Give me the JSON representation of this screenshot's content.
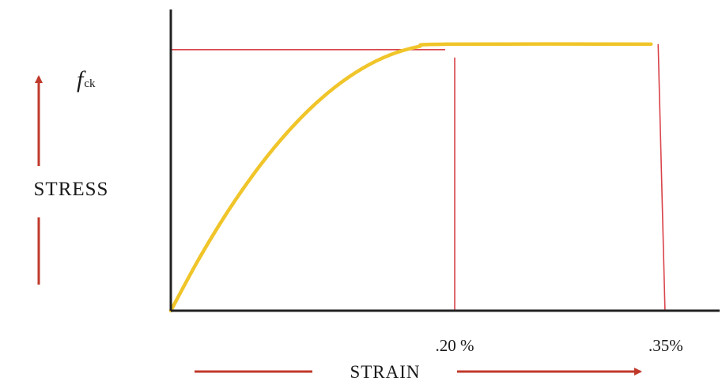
{
  "chart_data": {
    "type": "line",
    "ylabel": "STRESS",
    "xlabel": "STRAIN",
    "y_marker_label": {
      "main": "f",
      "subscript": "ck"
    },
    "tick_labels": [
      ".20 %",
      ".35%"
    ],
    "xlim": [
      0,
      0.4
    ],
    "ylim": [
      0,
      1.13
    ],
    "series": [
      {
        "color": "#f0c52a",
        "points": [
          [
            0.0,
            0.0
          ],
          [
            0.02,
            0.19
          ],
          [
            0.04,
            0.36
          ],
          [
            0.06,
            0.51
          ],
          [
            0.08,
            0.64
          ],
          [
            0.1,
            0.75
          ],
          [
            0.12,
            0.84
          ],
          [
            0.14,
            0.91
          ],
          [
            0.16,
            0.96
          ],
          [
            0.18,
            0.99
          ],
          [
            0.2,
            1.0
          ],
          [
            0.35,
            1.0
          ]
        ]
      }
    ],
    "reference_lines": {
      "color": "#d9434a",
      "fck_horizontal": {
        "y": 1.0,
        "x_end": 0.2
      },
      "verticals": [
        {
          "x": 0.2,
          "y_top": 0.95
        },
        {
          "x_top": 0.35,
          "x_bottom": 0.355,
          "y_top": 1.0
        }
      ]
    },
    "arrow_color": "#c0392b",
    "axis_color": "#222222"
  }
}
